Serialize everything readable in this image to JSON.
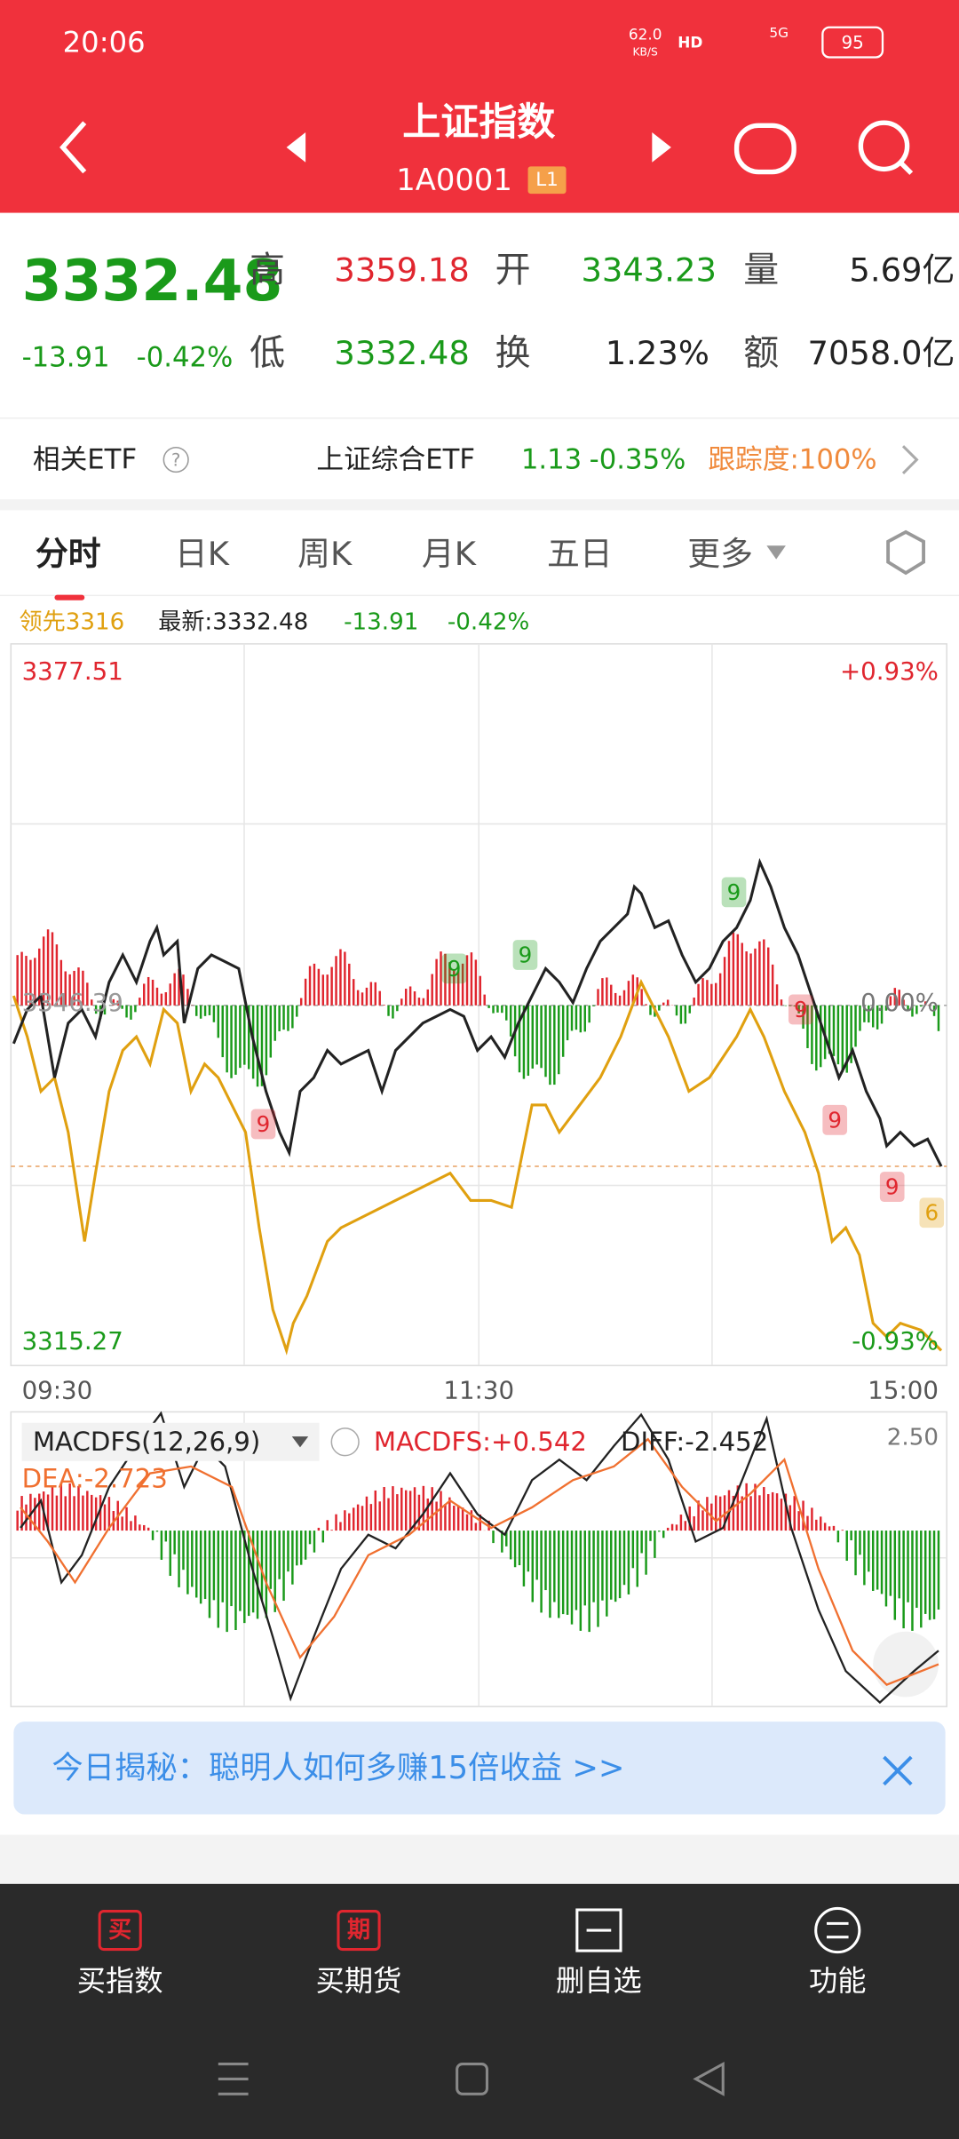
{
  "status_bar": {
    "time": "20:06",
    "net_speed": "62.0",
    "net_unit": "KB/S",
    "hd": "HD",
    "signal": "5G",
    "battery": "95"
  },
  "header": {
    "title": "上证指数",
    "code": "1A0001",
    "level": "L1"
  },
  "quote": {
    "price": "3332.48",
    "change": "-13.91",
    "change_pct": "-0.42%",
    "fields": [
      {
        "label": "高",
        "value": "3359.18"
      },
      {
        "label": "开",
        "value": "3343.23"
      },
      {
        "label": "量",
        "value": "5.69亿"
      },
      {
        "label": "低",
        "value": "3332.48"
      },
      {
        "label": "换",
        "value": "1.23%"
      },
      {
        "label": "额",
        "value": "7058.0亿"
      }
    ]
  },
  "etf": {
    "label": "相关ETF",
    "help": "?",
    "name": "上证综合ETF",
    "price": "1.13",
    "change": "-0.35%",
    "tracking": "跟踪度:100%"
  },
  "tabs": [
    "分时",
    "日K",
    "周K",
    "月K",
    "五日",
    "更多"
  ],
  "legend": {
    "lead": "领先3316",
    "latest": "最新:3332.48",
    "change": "-13.91",
    "pct": "-0.42%"
  },
  "chart": {
    "high": "3377.51",
    "high_pct": "+0.93%",
    "prev_close": "3346.39",
    "zero_pct": "0.00%",
    "low": "3315.27",
    "low_pct": "-0.93%",
    "times": [
      "09:30",
      "11:30",
      "15:00"
    ],
    "signals": [
      "9",
      "9",
      "9",
      "9",
      "9",
      "9",
      "9",
      "6"
    ]
  },
  "macd": {
    "name": "MACDFS(12,26,9)",
    "macdfs": "MACDFS:+0.542",
    "diff": "DIFF:-2.452",
    "dea": "DEA:-2.723",
    "scale": "2.50"
  },
  "banner": {
    "text": "今日揭秘：聪明人如何多赚15倍收益 >>"
  },
  "nav": [
    {
      "icon": "买",
      "label": "买指数"
    },
    {
      "icon": "期",
      "label": "买期货"
    },
    {
      "label": "删自选"
    },
    {
      "label": "功能"
    }
  ]
}
